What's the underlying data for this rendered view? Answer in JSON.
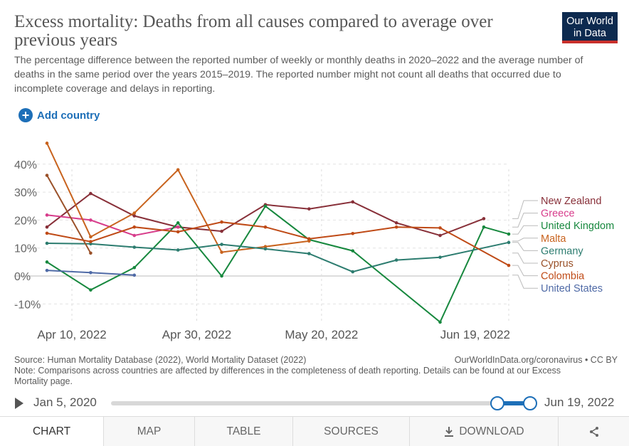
{
  "title": "Excess mortality: Deaths from all causes compared to average over previous years",
  "subtitle": "The percentage difference between the reported number of weekly or monthly deaths in 2020–2022 and the average number of deaths in the same period over the years 2015–2019. The reported number might not count all deaths that occurred due to incomplete coverage and delays in reporting.",
  "logo": {
    "line1": "Our World",
    "line2": "in Data"
  },
  "add_country": {
    "icon": "plus-circle-icon",
    "label": "Add country"
  },
  "source": "Source: Human Mortality Database (2022), World Mortality Dataset (2022)",
  "source_right": "OurWorldInData.org/coronavirus • CC BY",
  "note": "Note: Comparisons across countries are affected by differences in the completeness of death reporting. Details can be found at our Excess Mortality page.",
  "timeline": {
    "start": "Jan 5, 2020",
    "end": "Jun 19, 2022",
    "play_icon": "play-icon"
  },
  "tabs": [
    {
      "label": "CHART",
      "active": true
    },
    {
      "label": "MAP"
    },
    {
      "label": "TABLE"
    },
    {
      "label": "SOURCES"
    },
    {
      "label": "DOWNLOAD",
      "icon": "download-icon"
    },
    {
      "label": "",
      "icon": "share-icon"
    }
  ],
  "chart_data": {
    "type": "line",
    "xlim": [
      "2022-04-06",
      "2022-06-19"
    ],
    "ylim": [
      -15,
      47
    ],
    "y_ticks": [
      -10,
      0,
      10,
      20,
      30,
      40
    ],
    "y_tick_labels": [
      "-10%",
      "0%",
      "10%",
      "20%",
      "30%",
      "40%"
    ],
    "x_ticks": [
      "2022-04-10",
      "2022-04-30",
      "2022-05-20",
      "2022-06-19"
    ],
    "x_tick_labels": [
      "Apr 10, 2022",
      "Apr 30, 2022",
      "May 20, 2022",
      "Jun 19, 2022"
    ],
    "grid": true,
    "legend": "right",
    "series": [
      {
        "name": "New Zealand",
        "color": "#883039",
        "points": [
          [
            "2022-04-06",
            17.5
          ],
          [
            "2022-04-13",
            29.5
          ],
          [
            "2022-04-20",
            21.5
          ],
          [
            "2022-04-27",
            17.5
          ],
          [
            "2022-05-04",
            16
          ],
          [
            "2022-05-11",
            25.5
          ],
          [
            "2022-05-18",
            24
          ],
          [
            "2022-05-25",
            26.5
          ],
          [
            "2022-06-01",
            19
          ],
          [
            "2022-06-08",
            14.5
          ],
          [
            "2022-06-15",
            20.5
          ]
        ]
      },
      {
        "name": "Greece",
        "color": "#d73c8b",
        "points": [
          [
            "2022-04-06",
            21.8
          ],
          [
            "2022-04-13",
            20
          ],
          [
            "2022-04-20",
            14.5
          ],
          [
            "2022-04-27",
            17.5
          ]
        ]
      },
      {
        "name": "United Kingdom",
        "color": "#17883e",
        "points": [
          [
            "2022-04-06",
            5
          ],
          [
            "2022-04-13",
            -5
          ],
          [
            "2022-04-20",
            3
          ],
          [
            "2022-04-27",
            19
          ],
          [
            "2022-05-04",
            0
          ],
          [
            "2022-05-11",
            25
          ],
          [
            "2022-05-18",
            13
          ],
          [
            "2022-05-25",
            9
          ],
          [
            "2022-06-08",
            -16.5
          ],
          [
            "2022-06-15",
            17.5
          ],
          [
            "2022-06-19",
            15
          ]
        ]
      },
      {
        "name": "Malta",
        "color": "#c8631e",
        "points": [
          [
            "2022-04-06",
            47.5
          ],
          [
            "2022-04-13",
            14
          ],
          [
            "2022-04-20",
            22.5
          ],
          [
            "2022-04-27",
            38
          ],
          [
            "2022-05-04",
            8.5
          ],
          [
            "2022-05-11",
            10.5
          ],
          [
            "2022-05-18",
            12.5
          ]
        ]
      },
      {
        "name": "Germany",
        "color": "#2c7c6f",
        "points": [
          [
            "2022-04-06",
            11.7
          ],
          [
            "2022-04-13",
            11.5
          ],
          [
            "2022-04-20",
            10.3
          ],
          [
            "2022-04-27",
            9.3
          ],
          [
            "2022-05-04",
            11.3
          ],
          [
            "2022-05-11",
            9.7
          ],
          [
            "2022-05-18",
            8
          ],
          [
            "2022-05-25",
            1.5
          ],
          [
            "2022-06-01",
            5.7
          ],
          [
            "2022-06-08",
            6.7
          ],
          [
            "2022-06-19",
            12
          ]
        ]
      },
      {
        "name": "Cyprus",
        "color": "#9a5129",
        "points": [
          [
            "2022-04-06",
            36
          ],
          [
            "2022-04-13",
            8.2
          ]
        ]
      },
      {
        "name": "Colombia",
        "color": "#bf4a16",
        "points": [
          [
            "2022-04-06",
            15.3
          ],
          [
            "2022-04-13",
            12.3
          ],
          [
            "2022-04-20",
            17.5
          ],
          [
            "2022-04-27",
            15.8
          ],
          [
            "2022-05-04",
            19.3
          ],
          [
            "2022-05-11",
            17.5
          ],
          [
            "2022-05-18",
            13.3
          ],
          [
            "2022-05-25",
            15.2
          ],
          [
            "2022-06-01",
            17.5
          ],
          [
            "2022-06-08",
            17.2
          ],
          [
            "2022-06-19",
            3.8
          ]
        ]
      },
      {
        "name": "United States",
        "color": "#4f6aa6",
        "points": [
          [
            "2022-04-06",
            2
          ],
          [
            "2022-04-13",
            1.2
          ],
          [
            "2022-04-20",
            0.3
          ]
        ]
      }
    ]
  }
}
